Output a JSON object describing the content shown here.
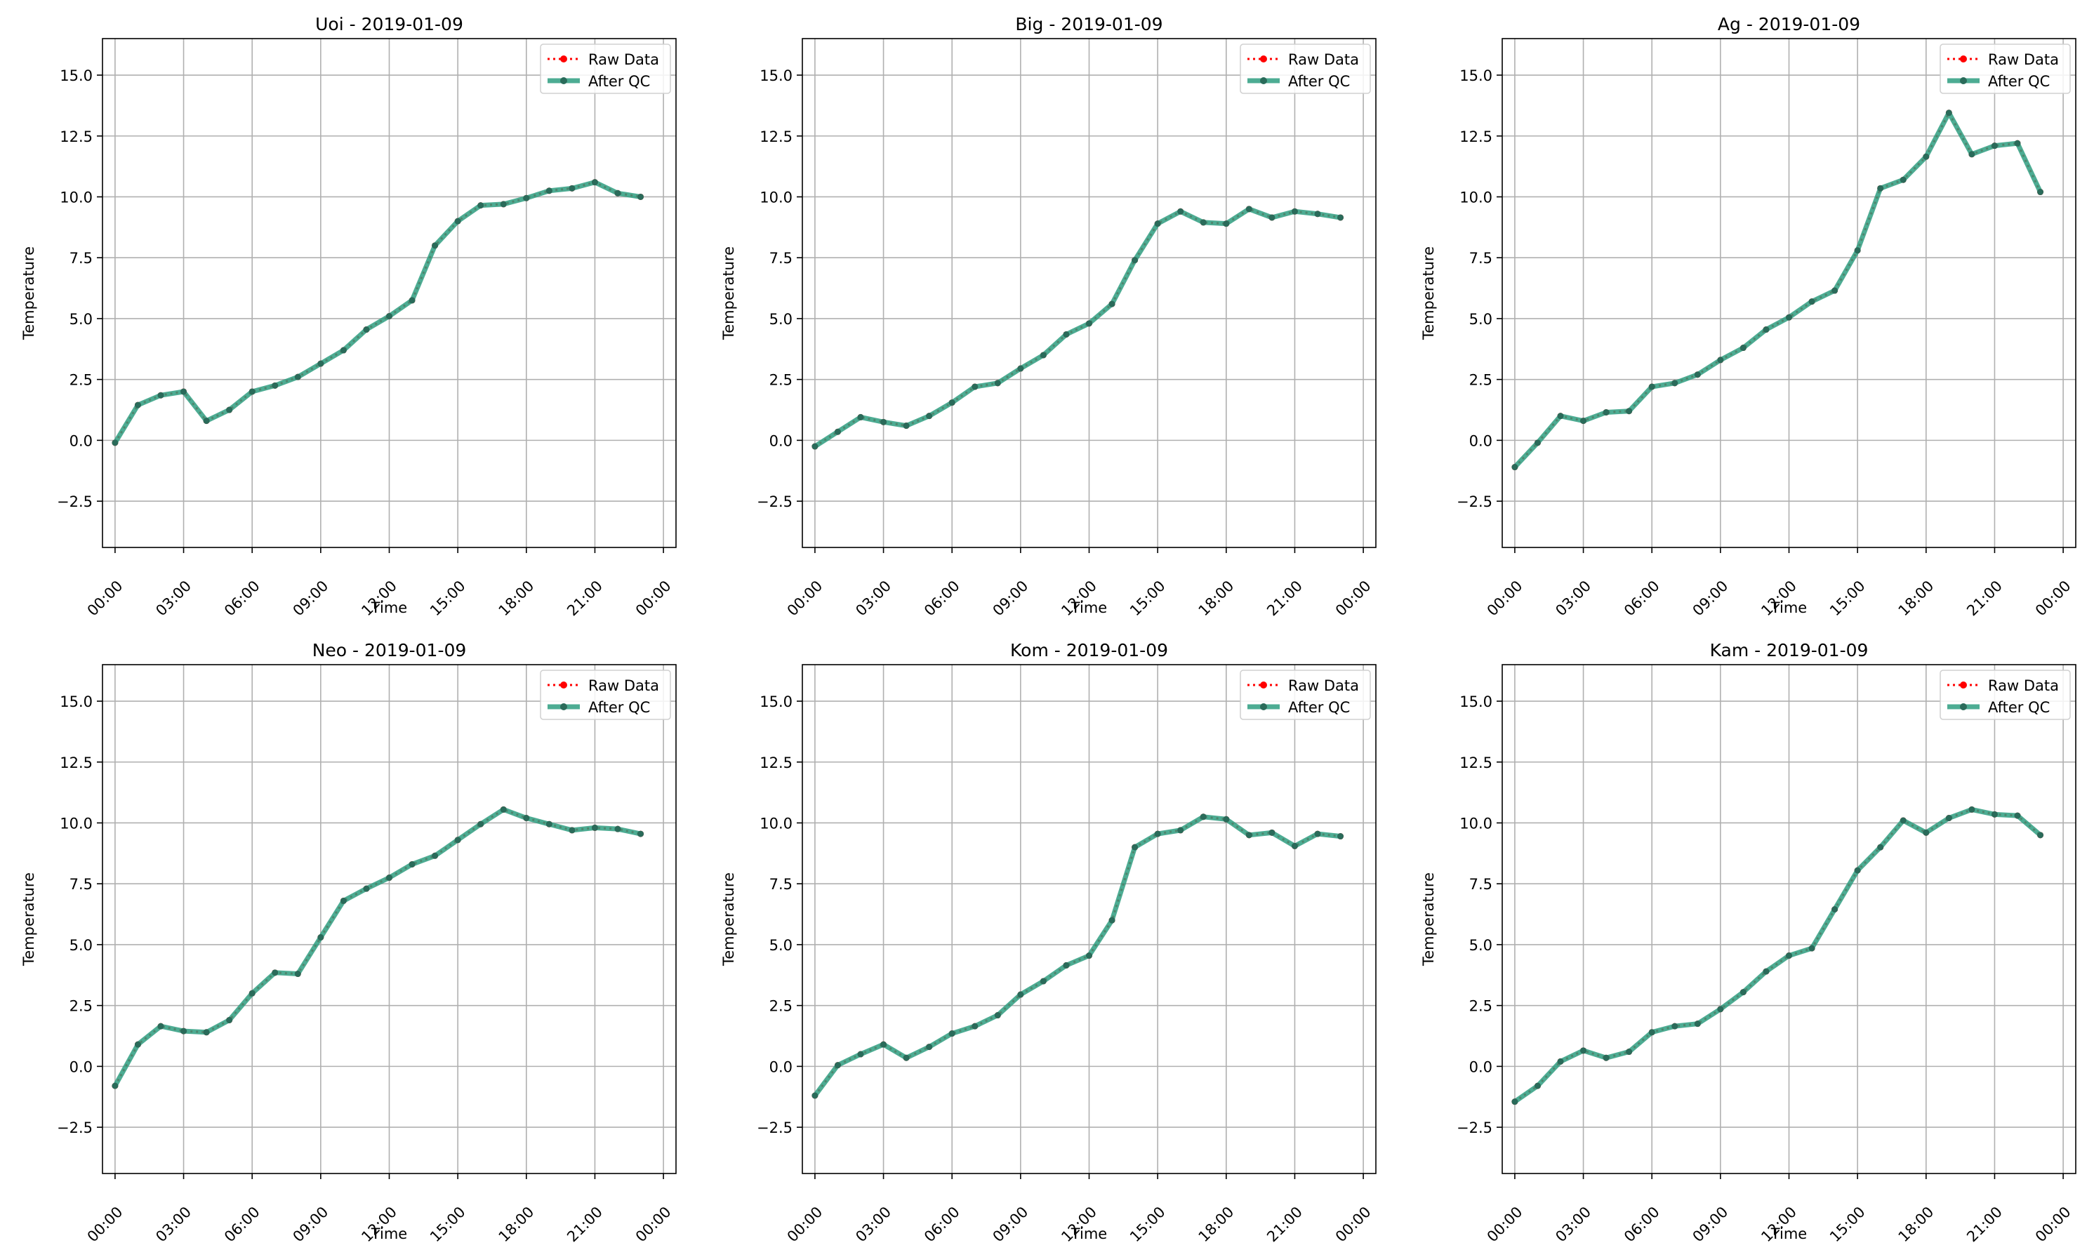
{
  "legend_entries": {
    "raw": "Raw Data",
    "qc": "After QC"
  },
  "colors": {
    "raw": "#ff0000",
    "qc_line": "#2e9e80",
    "qc_marker": "#2a6b5a",
    "grid": "#b0b0b0",
    "axis": "#000000"
  },
  "chart_data": [
    {
      "type": "line",
      "title": "Uoi - 2019-01-09",
      "xlabel": "Time",
      "ylabel": "Temperature",
      "x": [
        "00:00",
        "01:00",
        "02:00",
        "03:00",
        "04:00",
        "05:00",
        "06:00",
        "07:00",
        "08:00",
        "09:00",
        "10:00",
        "11:00",
        "12:00",
        "13:00",
        "14:00",
        "15:00",
        "16:00",
        "17:00",
        "18:00",
        "19:00",
        "20:00",
        "21:00",
        "22:00",
        "23:00"
      ],
      "xticks": [
        "00:00",
        "03:00",
        "06:00",
        "09:00",
        "12:00",
        "15:00",
        "18:00",
        "21:00",
        "00:00"
      ],
      "yticks": [
        "−2.5",
        "0.0",
        "2.5",
        "5.0",
        "7.5",
        "10.0",
        "12.5",
        "15.0"
      ],
      "ylim": [
        -4.4,
        16.5
      ],
      "grid": true,
      "legend_position": "top-right",
      "series": [
        {
          "name": "Raw Data",
          "values": [
            -0.1,
            1.45,
            1.85,
            2.0,
            0.8,
            1.25,
            2.0,
            2.25,
            2.6,
            3.15,
            3.7,
            4.55,
            5.1,
            5.75,
            8.0,
            9.0,
            9.65,
            9.7,
            9.95,
            10.25,
            10.35,
            10.6,
            10.15,
            10.0
          ]
        },
        {
          "name": "After QC",
          "values": [
            -0.1,
            1.45,
            1.85,
            2.0,
            0.8,
            1.25,
            2.0,
            2.25,
            2.6,
            3.15,
            3.7,
            4.55,
            5.1,
            5.75,
            8.0,
            9.0,
            9.65,
            9.7,
            9.95,
            10.25,
            10.35,
            10.6,
            10.15,
            10.0
          ]
        }
      ]
    },
    {
      "type": "line",
      "title": "Big - 2019-01-09",
      "xlabel": "Time",
      "ylabel": "Temperature",
      "x": [
        "00:00",
        "01:00",
        "02:00",
        "03:00",
        "04:00",
        "05:00",
        "06:00",
        "07:00",
        "08:00",
        "09:00",
        "10:00",
        "11:00",
        "12:00",
        "13:00",
        "14:00",
        "15:00",
        "16:00",
        "17:00",
        "18:00",
        "19:00",
        "20:00",
        "21:00",
        "22:00",
        "23:00"
      ],
      "xticks": [
        "00:00",
        "03:00",
        "06:00",
        "09:00",
        "12:00",
        "15:00",
        "18:00",
        "21:00",
        "00:00"
      ],
      "yticks": [
        "−2.5",
        "0.0",
        "2.5",
        "5.0",
        "7.5",
        "10.0",
        "12.5",
        "15.0"
      ],
      "ylim": [
        -4.4,
        16.5
      ],
      "grid": true,
      "legend_position": "top-right",
      "series": [
        {
          "name": "Raw Data",
          "values": [
            -0.25,
            0.35,
            0.95,
            0.75,
            0.6,
            1.0,
            1.55,
            2.2,
            2.35,
            2.95,
            3.5,
            4.35,
            4.8,
            5.6,
            7.4,
            8.9,
            9.4,
            8.95,
            8.9,
            9.5,
            9.15,
            9.4,
            9.3,
            9.15
          ]
        },
        {
          "name": "After QC",
          "values": [
            -0.25,
            0.35,
            0.95,
            0.75,
            0.6,
            1.0,
            1.55,
            2.2,
            2.35,
            2.95,
            3.5,
            4.35,
            4.8,
            5.6,
            7.4,
            8.9,
            9.4,
            8.95,
            8.9,
            9.5,
            9.15,
            9.4,
            9.3,
            9.15
          ]
        }
      ]
    },
    {
      "type": "line",
      "title": "Ag - 2019-01-09",
      "xlabel": "Time",
      "ylabel": "Temperature",
      "x": [
        "00:00",
        "01:00",
        "02:00",
        "03:00",
        "04:00",
        "05:00",
        "06:00",
        "07:00",
        "08:00",
        "09:00",
        "10:00",
        "11:00",
        "12:00",
        "13:00",
        "14:00",
        "15:00",
        "16:00",
        "17:00",
        "18:00",
        "19:00",
        "20:00",
        "21:00",
        "22:00",
        "23:00"
      ],
      "xticks": [
        "00:00",
        "03:00",
        "06:00",
        "09:00",
        "12:00",
        "15:00",
        "18:00",
        "21:00",
        "00:00"
      ],
      "yticks": [
        "−2.5",
        "0.0",
        "2.5",
        "5.0",
        "7.5",
        "10.0",
        "12.5",
        "15.0"
      ],
      "ylim": [
        -4.4,
        16.5
      ],
      "grid": true,
      "legend_position": "top-right",
      "series": [
        {
          "name": "Raw Data",
          "values": [
            -1.1,
            -0.1,
            1.0,
            0.8,
            1.15,
            1.2,
            2.2,
            2.35,
            2.7,
            3.3,
            3.8,
            4.55,
            5.05,
            5.7,
            6.15,
            7.8,
            10.35,
            10.7,
            11.65,
            13.45,
            11.75,
            12.1,
            12.2,
            10.2
          ]
        },
        {
          "name": "After QC",
          "values": [
            -1.1,
            -0.1,
            1.0,
            0.8,
            1.15,
            1.2,
            2.2,
            2.35,
            2.7,
            3.3,
            3.8,
            4.55,
            5.05,
            5.7,
            6.15,
            7.8,
            10.35,
            10.7,
            11.65,
            13.45,
            11.75,
            12.1,
            12.2,
            10.2
          ]
        }
      ]
    },
    {
      "type": "line",
      "title": "Neo - 2019-01-09",
      "xlabel": "Time",
      "ylabel": "Temperature",
      "x": [
        "00:00",
        "01:00",
        "02:00",
        "03:00",
        "04:00",
        "05:00",
        "06:00",
        "07:00",
        "08:00",
        "09:00",
        "10:00",
        "11:00",
        "12:00",
        "13:00",
        "14:00",
        "15:00",
        "16:00",
        "17:00",
        "18:00",
        "19:00",
        "20:00",
        "21:00",
        "22:00",
        "23:00"
      ],
      "xticks": [
        "00:00",
        "03:00",
        "06:00",
        "09:00",
        "12:00",
        "15:00",
        "18:00",
        "21:00",
        "00:00"
      ],
      "yticks": [
        "−2.5",
        "0.0",
        "2.5",
        "5.0",
        "7.5",
        "10.0",
        "12.5",
        "15.0"
      ],
      "ylim": [
        -4.4,
        16.5
      ],
      "grid": true,
      "legend_position": "top-right",
      "series": [
        {
          "name": "Raw Data",
          "values": [
            -0.8,
            0.9,
            1.65,
            1.45,
            1.4,
            1.9,
            3.0,
            3.85,
            3.8,
            5.3,
            6.8,
            7.3,
            7.75,
            8.3,
            8.65,
            9.3,
            9.95,
            10.55,
            10.2,
            9.95,
            9.7,
            9.8,
            9.75,
            9.55
          ]
        },
        {
          "name": "After QC",
          "values": [
            -0.8,
            0.9,
            1.65,
            1.45,
            1.4,
            1.9,
            3.0,
            3.85,
            3.8,
            5.3,
            6.8,
            7.3,
            7.75,
            8.3,
            8.65,
            9.3,
            9.95,
            10.55,
            10.2,
            9.95,
            9.7,
            9.8,
            9.75,
            9.55
          ]
        }
      ]
    },
    {
      "type": "line",
      "title": "Kom - 2019-01-09",
      "xlabel": "Time",
      "ylabel": "Temperature",
      "x": [
        "00:00",
        "01:00",
        "02:00",
        "03:00",
        "04:00",
        "05:00",
        "06:00",
        "07:00",
        "08:00",
        "09:00",
        "10:00",
        "11:00",
        "12:00",
        "13:00",
        "14:00",
        "15:00",
        "16:00",
        "17:00",
        "18:00",
        "19:00",
        "20:00",
        "21:00",
        "22:00",
        "23:00"
      ],
      "xticks": [
        "00:00",
        "03:00",
        "06:00",
        "09:00",
        "12:00",
        "15:00",
        "18:00",
        "21:00",
        "00:00"
      ],
      "yticks": [
        "−2.5",
        "0.0",
        "2.5",
        "5.0",
        "7.5",
        "10.0",
        "12.5",
        "15.0"
      ],
      "ylim": [
        -4.4,
        16.5
      ],
      "grid": true,
      "legend_position": "top-right",
      "series": [
        {
          "name": "Raw Data",
          "values": [
            -1.2,
            0.05,
            0.5,
            0.9,
            0.35,
            0.8,
            1.35,
            1.65,
            2.1,
            2.95,
            3.5,
            4.15,
            4.55,
            6.0,
            9.0,
            9.55,
            9.7,
            10.25,
            10.15,
            9.5,
            9.6,
            9.05,
            9.55,
            9.45
          ]
        },
        {
          "name": "After QC",
          "values": [
            -1.2,
            0.05,
            0.5,
            0.9,
            0.35,
            0.8,
            1.35,
            1.65,
            2.1,
            2.95,
            3.5,
            4.15,
            4.55,
            6.0,
            9.0,
            9.55,
            9.7,
            10.25,
            10.15,
            9.5,
            9.6,
            9.05,
            9.55,
            9.45
          ]
        }
      ]
    },
    {
      "type": "line",
      "title": "Kam - 2019-01-09",
      "xlabel": "Time",
      "ylabel": "Temperature",
      "x": [
        "00:00",
        "01:00",
        "02:00",
        "03:00",
        "04:00",
        "05:00",
        "06:00",
        "07:00",
        "08:00",
        "09:00",
        "10:00",
        "11:00",
        "12:00",
        "13:00",
        "14:00",
        "15:00",
        "16:00",
        "17:00",
        "18:00",
        "19:00",
        "20:00",
        "21:00",
        "22:00",
        "23:00"
      ],
      "xticks": [
        "00:00",
        "03:00",
        "06:00",
        "09:00",
        "12:00",
        "15:00",
        "18:00",
        "21:00",
        "00:00"
      ],
      "yticks": [
        "−2.5",
        "0.0",
        "2.5",
        "5.0",
        "7.5",
        "10.0",
        "12.5",
        "15.0"
      ],
      "ylim": [
        -4.4,
        16.5
      ],
      "grid": true,
      "legend_position": "top-right",
      "series": [
        {
          "name": "Raw Data",
          "values": [
            -1.45,
            -0.8,
            0.2,
            0.65,
            0.35,
            0.6,
            1.4,
            1.65,
            1.75,
            2.35,
            3.05,
            3.9,
            4.55,
            4.85,
            6.45,
            8.05,
            9.0,
            10.1,
            9.6,
            10.2,
            10.55,
            10.35,
            10.3,
            9.5
          ]
        },
        {
          "name": "After QC",
          "values": [
            -1.45,
            -0.8,
            0.2,
            0.65,
            0.35,
            0.6,
            1.4,
            1.65,
            1.75,
            2.35,
            3.05,
            3.9,
            4.55,
            4.85,
            6.45,
            8.05,
            9.0,
            10.1,
            9.6,
            10.2,
            10.55,
            10.35,
            10.3,
            9.5
          ]
        }
      ]
    }
  ]
}
